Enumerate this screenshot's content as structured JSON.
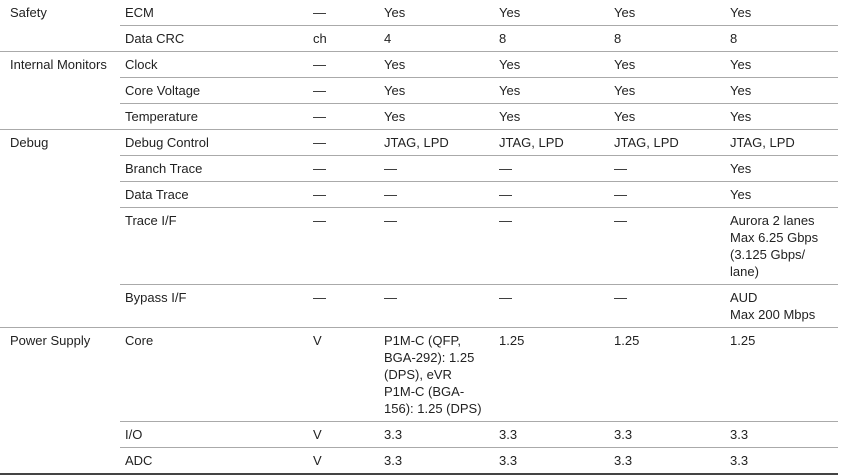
{
  "groups": [
    {
      "label": "Safety",
      "rows": [
        [
          "ECM",
          "—",
          "Yes",
          "Yes",
          "Yes",
          "Yes"
        ],
        [
          "Data CRC",
          "ch",
          "4",
          "8",
          "8",
          "8"
        ]
      ]
    },
    {
      "label": "Internal Monitors",
      "rows": [
        [
          "Clock",
          "—",
          "Yes",
          "Yes",
          "Yes",
          "Yes"
        ],
        [
          "Core Voltage",
          "—",
          "Yes",
          "Yes",
          "Yes",
          "Yes"
        ],
        [
          "Temperature",
          "—",
          "Yes",
          "Yes",
          "Yes",
          "Yes"
        ]
      ]
    },
    {
      "label": "Debug",
      "rows": [
        [
          "Debug Control",
          "—",
          "JTAG, LPD",
          "JTAG, LPD",
          "JTAG, LPD",
          "JTAG, LPD"
        ],
        [
          "Branch Trace",
          "—",
          "—",
          "—",
          "—",
          "Yes"
        ],
        [
          "Data Trace",
          "—",
          "—",
          "—",
          "—",
          "Yes"
        ],
        [
          "Trace I/F",
          "—",
          "—",
          "—",
          "—",
          [
            "Aurora 2 lanes",
            "Max 6.25 Gbps",
            "(3.125 Gbps/ lane)"
          ]
        ],
        [
          "Bypass I/F",
          "—",
          "—",
          "—",
          "—",
          [
            "AUD",
            "Max 200 Mbps"
          ]
        ]
      ]
    },
    {
      "label": "Power Supply",
      "rows": [
        [
          "Core",
          "V",
          [
            "P1M-C (QFP, BGA-292): 1.25 (DPS), eVR",
            "P1M-C (BGA-156): 1.25 (DPS)"
          ],
          "1.25",
          "1.25",
          "1.25"
        ],
        [
          "I/O",
          "V",
          "3.3",
          "3.3",
          "3.3",
          "3.3"
        ],
        [
          "ADC",
          "V",
          "3.3",
          "3.3",
          "3.3",
          "3.3"
        ]
      ]
    }
  ]
}
